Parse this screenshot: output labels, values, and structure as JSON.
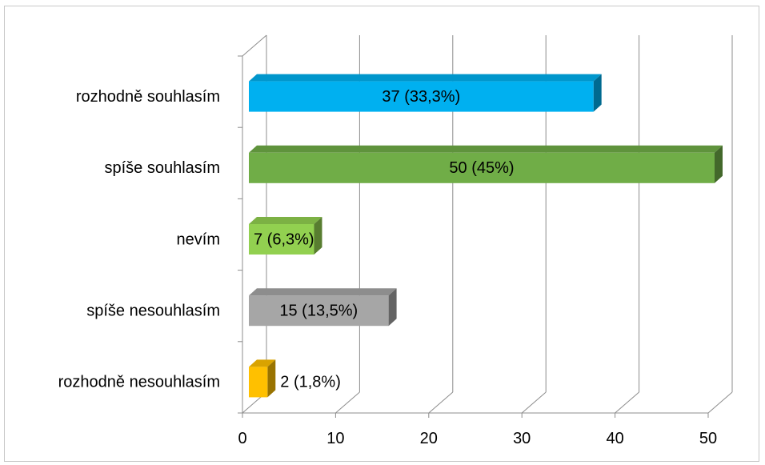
{
  "chart_data": {
    "type": "bar",
    "orientation": "horizontal",
    "style": "3d",
    "categories": [
      "rozhodně souhlasím",
      "spíše souhlasím",
      "nevím",
      "spíše nesouhlasím",
      "rozhodně nesouhlasím"
    ],
    "values": [
      37,
      50,
      7,
      15,
      2
    ],
    "data_labels": [
      "37 (33,3%)",
      "50 (45%)",
      "7 (6,3%)",
      "15 (13,5%)",
      "2 (1,8%)"
    ],
    "colors": [
      "#00b0f0",
      "#70ad47",
      "#92d050",
      "#a6a6a6",
      "#ffc000"
    ],
    "xlim": [
      0,
      50
    ],
    "x_ticks": [
      "0",
      "10",
      "20",
      "30",
      "40",
      "50"
    ],
    "grid": true,
    "legend": "none",
    "title": "",
    "xlabel": "",
    "ylabel": ""
  }
}
